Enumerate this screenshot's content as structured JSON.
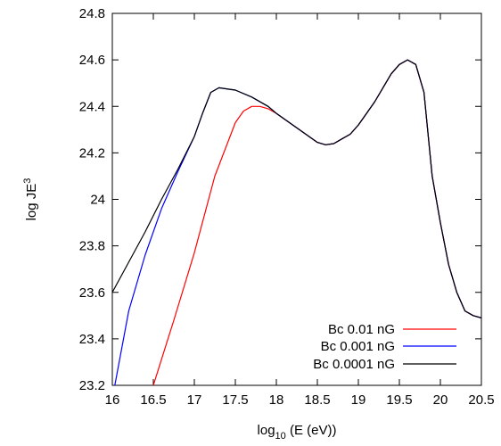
{
  "chart_data": {
    "type": "line",
    "title": "",
    "xlabel": {
      "base": "log",
      "sub": "10",
      "rest": " (E (eV))"
    },
    "ylabel": {
      "base": "log JE",
      "sup": "3"
    },
    "xlim": [
      16,
      20.5
    ],
    "ylim": [
      23.2,
      24.8
    ],
    "xticks": [
      16,
      16.5,
      17,
      17.5,
      18,
      18.5,
      19,
      19.5,
      20,
      20.5
    ],
    "xtick_labels": [
      "16",
      "16.5",
      "17",
      "17.5",
      "18",
      "18.5",
      "19",
      "19.5",
      "20",
      "20.5"
    ],
    "yticks": [
      23.2,
      23.4,
      23.6,
      23.8,
      24,
      24.2,
      24.4,
      24.6,
      24.8
    ],
    "ytick_labels": [
      "23.2",
      "23.4",
      "23.6",
      "23.8",
      "24",
      "24.2",
      "24.4",
      "24.6",
      "24.8"
    ],
    "grid": false,
    "legend_position": "bottom-right",
    "series": [
      {
        "name": "Bc 0.01 nG",
        "color": "#ff0000",
        "x": [
          16.5,
          16.75,
          17.0,
          17.25,
          17.5,
          17.6,
          17.7,
          17.8,
          17.9,
          18.0,
          18.2,
          18.4,
          18.5,
          18.6,
          18.7,
          18.8,
          18.9,
          19.0,
          19.1,
          19.2,
          19.3,
          19.4,
          19.5,
          19.6,
          19.7,
          19.8,
          19.9,
          20.0,
          20.1,
          20.2,
          20.3,
          20.4,
          20.5
        ],
        "y": [
          23.2,
          23.48,
          23.77,
          24.1,
          24.33,
          24.38,
          24.4,
          24.4,
          24.39,
          24.37,
          24.32,
          24.27,
          24.245,
          24.235,
          24.24,
          24.26,
          24.28,
          24.32,
          24.37,
          24.42,
          24.48,
          24.54,
          24.58,
          24.6,
          24.58,
          24.46,
          24.1,
          23.9,
          23.72,
          23.6,
          23.52,
          23.5,
          23.49
        ]
      },
      {
        "name": "Bc 0.001 nG",
        "color": "#0000ff",
        "x": [
          16.03,
          16.2,
          16.4,
          16.6,
          16.8,
          17.0,
          17.1,
          17.2,
          17.3,
          17.5,
          17.7,
          17.9,
          18.0,
          18.2,
          18.4,
          18.5,
          18.6,
          18.7,
          18.8,
          18.9,
          19.0,
          19.1,
          19.2,
          19.3,
          19.4,
          19.5,
          19.6,
          19.7,
          19.8,
          19.9,
          20.0,
          20.1,
          20.2,
          20.3,
          20.4,
          20.5
        ],
        "y": [
          23.2,
          23.52,
          23.76,
          23.96,
          24.12,
          24.27,
          24.37,
          24.46,
          24.48,
          24.47,
          24.44,
          24.4,
          24.37,
          24.32,
          24.27,
          24.245,
          24.235,
          24.24,
          24.26,
          24.28,
          24.32,
          24.37,
          24.42,
          24.48,
          24.54,
          24.58,
          24.6,
          24.58,
          24.46,
          24.1,
          23.9,
          23.72,
          23.6,
          23.52,
          23.5,
          23.49
        ]
      },
      {
        "name": "Bc 0.0001 nG",
        "color": "#000000",
        "x": [
          16.0,
          16.2,
          16.4,
          16.6,
          16.8,
          17.0,
          17.1,
          17.2,
          17.3,
          17.5,
          17.7,
          17.9,
          18.0,
          18.2,
          18.4,
          18.5,
          18.6,
          18.7,
          18.8,
          18.9,
          19.0,
          19.1,
          19.2,
          19.3,
          19.4,
          19.5,
          19.6,
          19.7,
          19.8,
          19.9,
          20.0,
          20.1,
          20.2,
          20.3,
          20.4,
          20.5
        ],
        "y": [
          23.6,
          23.73,
          23.86,
          24.0,
          24.13,
          24.27,
          24.37,
          24.46,
          24.48,
          24.47,
          24.44,
          24.4,
          24.37,
          24.32,
          24.27,
          24.245,
          24.235,
          24.24,
          24.26,
          24.28,
          24.32,
          24.37,
          24.42,
          24.48,
          24.54,
          24.58,
          24.6,
          24.58,
          24.46,
          24.1,
          23.9,
          23.72,
          23.6,
          23.52,
          23.5,
          23.49
        ]
      }
    ]
  }
}
